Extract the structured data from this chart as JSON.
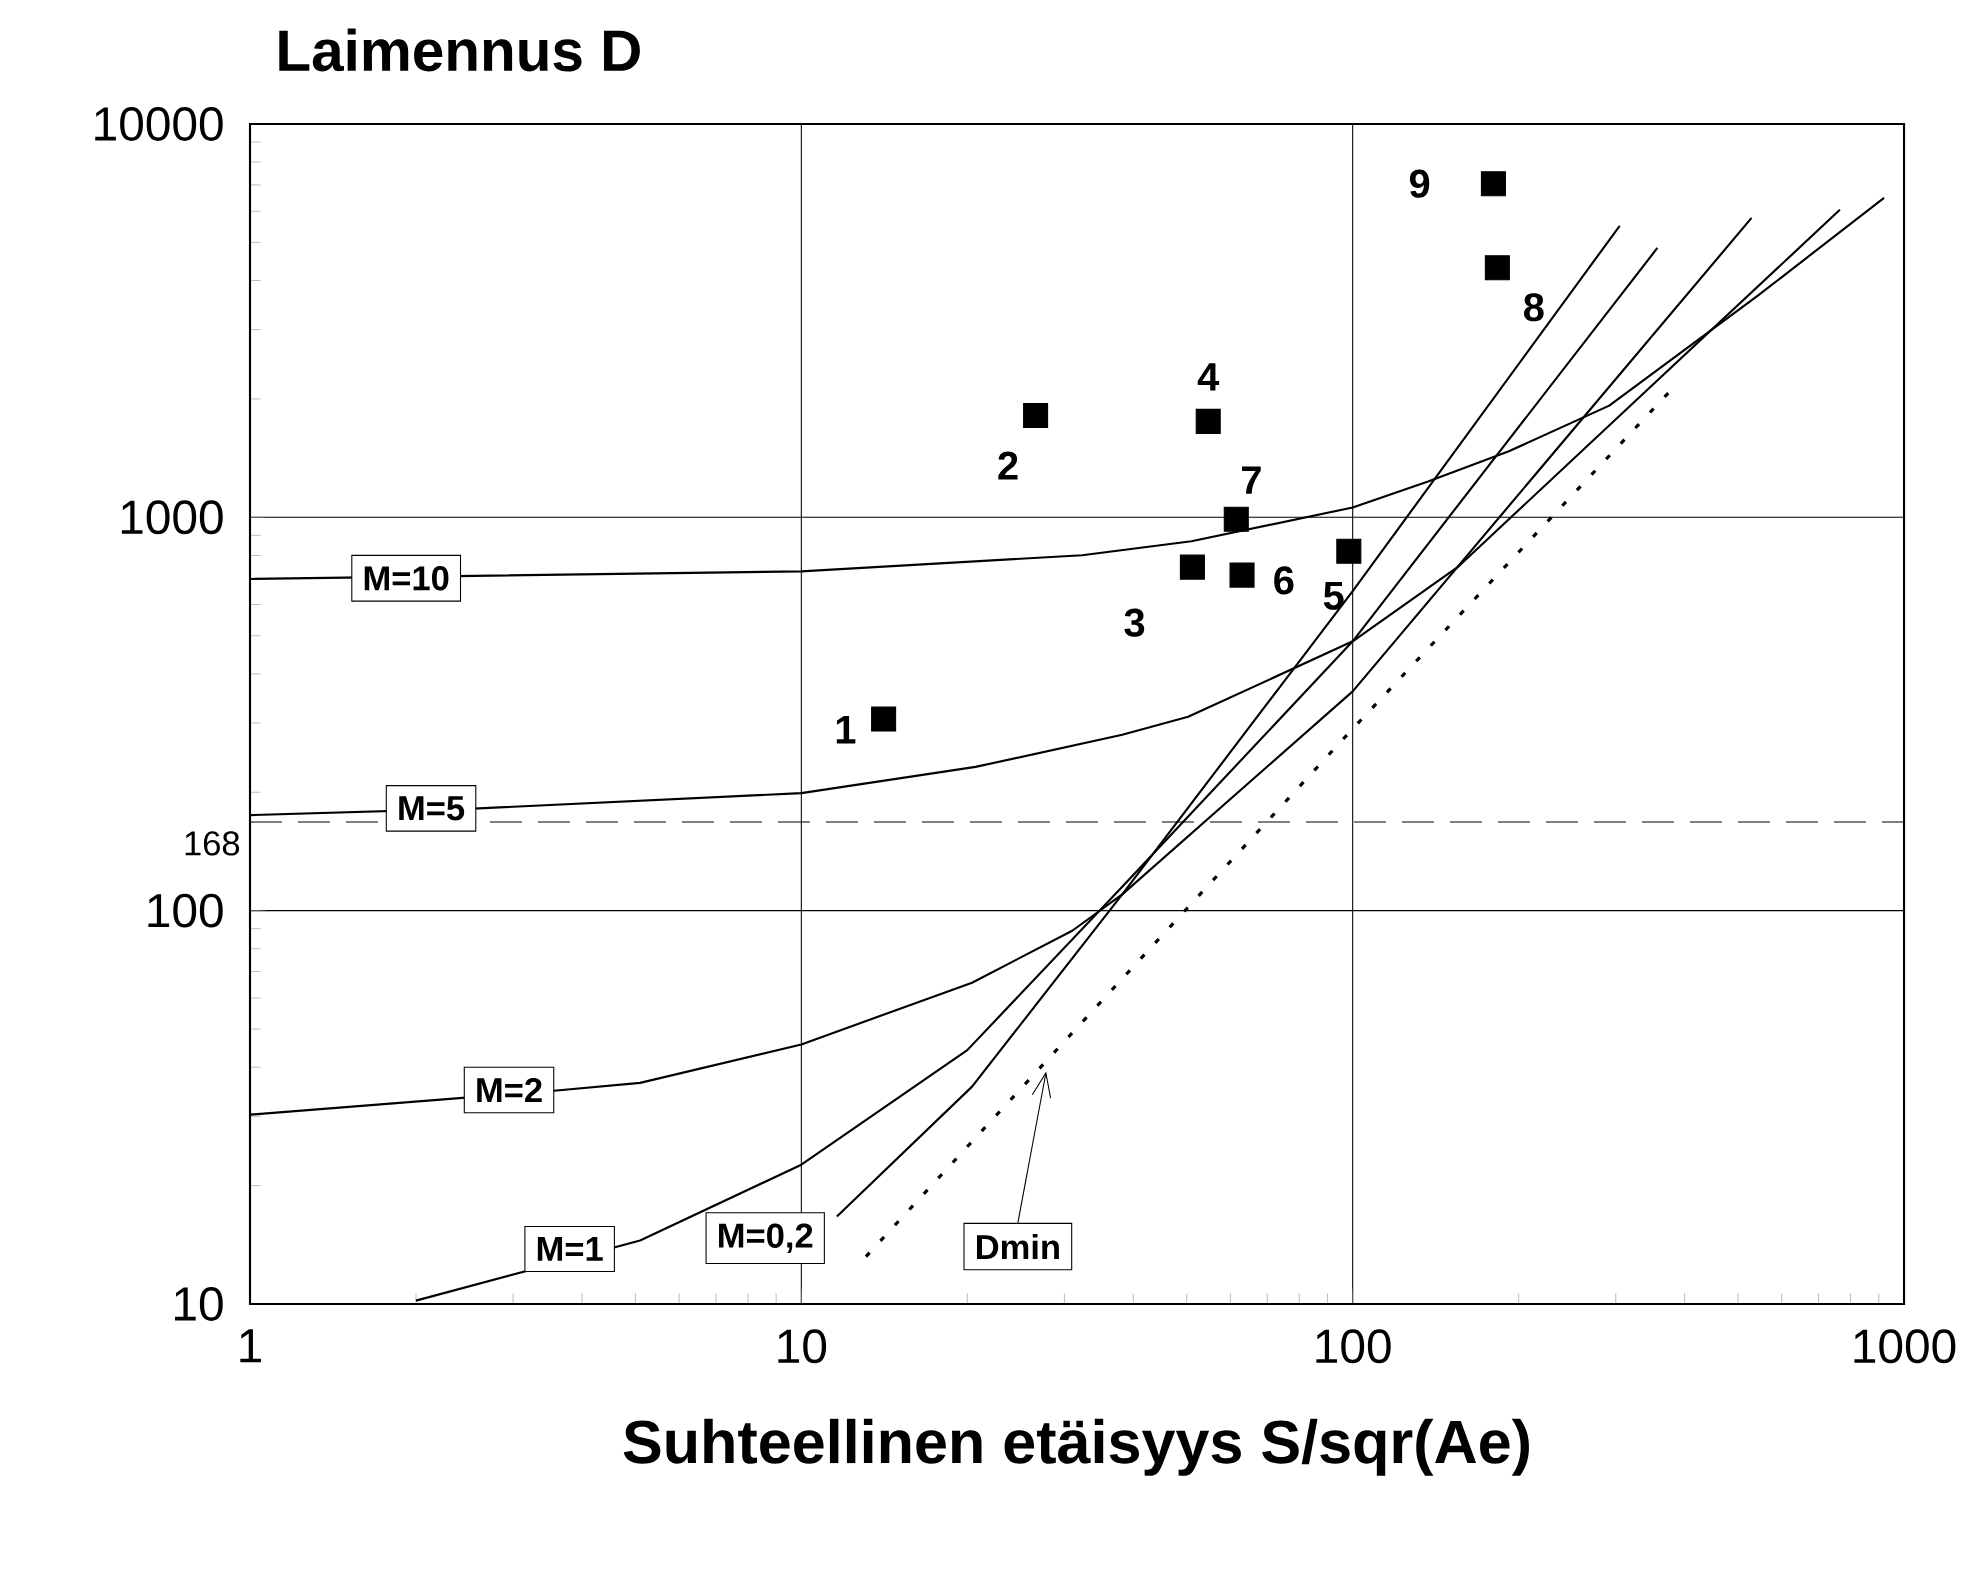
{
  "chart_data": {
    "type": "line",
    "title": "Laimennus D",
    "xlabel": "Suhteellinen etäisyys S/sqr(Ae)",
    "log": "xy",
    "grid": true,
    "xlim": [
      1,
      1000
    ],
    "ylim": [
      10,
      10000
    ],
    "xticks": [
      1,
      10,
      100,
      1000
    ],
    "yticks": [
      10,
      100,
      1000,
      10000
    ],
    "ref_lines": [
      {
        "axis": "y",
        "value": 168,
        "label": "168",
        "color": "#000000",
        "line_style": "dashed"
      }
    ],
    "series": [
      {
        "name": "M=10",
        "color": "#000000",
        "line_style": "solid",
        "x": [
          1,
          10,
          32.3,
          51,
          100,
          137,
          192,
          292,
          543,
          920
        ],
        "values": [
          697,
          729,
          801,
          869,
          1059,
          1233,
          1472,
          1923,
          3660,
          6490
        ]
      },
      {
        "name": "M=5",
        "color": "#000000",
        "line_style": "solid",
        "x": [
          1,
          2.6,
          10,
          20.7,
          38.2,
          50.3,
          100,
          155,
          765
        ],
        "values": [
          175,
          182,
          199,
          232,
          280,
          311,
          484,
          747,
          6050
        ]
      },
      {
        "name": "M=2",
        "color": "#000000",
        "line_style": "solid",
        "x": [
          1,
          3.6,
          5.1,
          10,
          20.4,
          31,
          38.2,
          100,
          529
        ],
        "values": [
          30.3,
          34.9,
          36.5,
          45.7,
          65.6,
          88.9,
          110,
          361,
          5770
        ]
      },
      {
        "name": "M=1",
        "color": "#000000",
        "line_style": "solid",
        "x": [
          2.0,
          5.1,
          10,
          20,
          38.2,
          100,
          357
        ],
        "values": [
          10.2,
          14.5,
          22.6,
          44.2,
          115,
          484,
          4840
        ]
      },
      {
        "name": "M=0,2",
        "color": "#000000",
        "line_style": "solid",
        "x": [
          11.6,
          20.4,
          38.2,
          100,
          305
        ],
        "values": [
          16.7,
          35.7,
          110,
          649,
          5510
        ]
      },
      {
        "name": "Dmin",
        "color": "#000000",
        "line_style": "dotted",
        "x": [
          13.1,
          100,
          376
        ],
        "values": [
          13.2,
          290,
          2090
        ]
      },
      {
        "type": "scatter",
        "marker": "square",
        "color": "#000000",
        "x": [
          14.1,
          26.6,
          51.2,
          54.7,
          98.4,
          63,
          61.5,
          183,
          180
        ],
        "values": [
          307,
          1815,
          747,
          1754,
          820,
          713,
          989,
          4310,
          7050
        ]
      }
    ],
    "annotations": [
      {
        "text": "1",
        "x": 14.1,
        "y": 307
      },
      {
        "text": "2",
        "x": 26.6,
        "y": 1815
      },
      {
        "text": "3",
        "x": 51.2,
        "y": 747
      },
      {
        "text": "4",
        "x": 54.7,
        "y": 1754
      },
      {
        "text": "5",
        "x": 98.4,
        "y": 820
      },
      {
        "text": "6",
        "x": 63,
        "y": 713
      },
      {
        "text": "7",
        "x": 61.5,
        "y": 989
      },
      {
        "text": "8",
        "x": 183,
        "y": 4310
      },
      {
        "text": "9",
        "x": 180,
        "y": 7050
      }
    ]
  }
}
